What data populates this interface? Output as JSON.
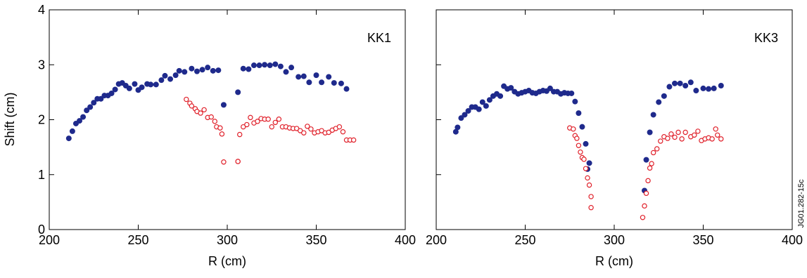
{
  "figure_id": "JG01.282-15c",
  "colors": {
    "filled": "#1f2a8c",
    "open": "#e0202a",
    "axis": "#000000"
  },
  "chart_data": [
    {
      "type": "scatter",
      "panel_label": "KK1",
      "xlabel": "R (cm)",
      "ylabel": "Shift (cm)",
      "xlim": [
        200,
        400
      ],
      "ylim": [
        0,
        4
      ],
      "xticks": [
        "200",
        "250",
        "300",
        "350",
        "400"
      ],
      "yticks": [
        "0",
        "1",
        "2",
        "3",
        "4"
      ],
      "grid": false,
      "series": [
        {
          "marker": "filled",
          "x": [
            211,
            213,
            215,
            217,
            219,
            221,
            223,
            225,
            227,
            229,
            231,
            233,
            235,
            237,
            239,
            241,
            243,
            245,
            248,
            250,
            252,
            255,
            257,
            260,
            263,
            265,
            268,
            271,
            273,
            276,
            280,
            283,
            286,
            289,
            292,
            295,
            298,
            306,
            309,
            312,
            315,
            318,
            321,
            324,
            327,
            330,
            333,
            336,
            340,
            343,
            346,
            350,
            353,
            357,
            360,
            364,
            367
          ],
          "y": [
            1.66,
            1.79,
            1.93,
            1.98,
            2.05,
            2.17,
            2.23,
            2.31,
            2.38,
            2.38,
            2.44,
            2.44,
            2.48,
            2.55,
            2.65,
            2.67,
            2.62,
            2.57,
            2.65,
            2.54,
            2.59,
            2.65,
            2.64,
            2.64,
            2.72,
            2.8,
            2.74,
            2.81,
            2.89,
            2.87,
            2.93,
            2.88,
            2.91,
            2.95,
            2.89,
            2.9,
            2.27,
            2.5,
            2.93,
            2.92,
            2.99,
            2.99,
            3.0,
            2.99,
            3.01,
            2.97,
            2.87,
            2.95,
            2.78,
            2.79,
            2.68,
            2.81,
            2.68,
            2.78,
            2.67,
            2.66,
            2.56
          ]
        },
        {
          "marker": "open",
          "x": [
            277,
            279,
            280,
            282,
            283,
            285,
            287,
            289,
            291,
            293,
            294,
            296,
            297,
            306,
            307,
            309,
            311,
            313,
            315,
            317,
            319,
            321,
            323,
            325,
            327,
            329,
            331,
            333,
            335,
            337,
            339,
            341,
            343,
            345,
            347,
            349,
            351,
            353,
            355,
            357,
            359,
            361,
            363,
            365,
            367,
            369,
            371
          ],
          "y": [
            2.37,
            2.3,
            2.25,
            2.2,
            2.15,
            2.12,
            2.18,
            2.04,
            2.05,
            1.97,
            1.87,
            1.85,
            1.74,
            1.24,
            1.73,
            1.87,
            1.91,
            2.04,
            1.94,
            1.97,
            2.02,
            2.01,
            2.01,
            1.87,
            1.95,
            2.01,
            1.87,
            1.87,
            1.85,
            1.84,
            1.84,
            1.8,
            1.76,
            1.88,
            1.83,
            1.76,
            1.78,
            1.8,
            1.76,
            1.77,
            1.81,
            1.84,
            1.87,
            1.78,
            1.63,
            1.63,
            1.63
          ]
        },
        {
          "marker": "open",
          "x": [
            298,
            306
          ],
          "y": [
            1.23,
            1.24
          ]
        }
      ]
    },
    {
      "type": "scatter",
      "panel_label": "KK3",
      "xlabel": "R (cm)",
      "ylabel": "",
      "xlim": [
        200,
        400
      ],
      "ylim": [
        0,
        4
      ],
      "xticks": [
        "200",
        "250",
        "300",
        "350",
        "400"
      ],
      "yticks": [],
      "grid": false,
      "series": [
        {
          "marker": "filled",
          "x": [
            211,
            212,
            214,
            216,
            218,
            220,
            222,
            224,
            226,
            228,
            230,
            232,
            234,
            236,
            238,
            240,
            242,
            244,
            246,
            248,
            250,
            252,
            254,
            256,
            258,
            260,
            262,
            264,
            266,
            268,
            270,
            272,
            274,
            276,
            278,
            280,
            282,
            284,
            285,
            286,
            317,
            318,
            320,
            322,
            325,
            328,
            331,
            334,
            337,
            340,
            343,
            346,
            350,
            353,
            356,
            360
          ],
          "y": [
            1.78,
            1.86,
            2.03,
            2.09,
            2.16,
            2.23,
            2.23,
            2.19,
            2.32,
            2.25,
            2.36,
            2.43,
            2.47,
            2.43,
            2.61,
            2.56,
            2.58,
            2.51,
            2.47,
            2.49,
            2.51,
            2.53,
            2.49,
            2.48,
            2.51,
            2.53,
            2.52,
            2.57,
            2.51,
            2.51,
            2.47,
            2.49,
            2.48,
            2.48,
            2.33,
            2.12,
            1.87,
            1.56,
            1.1,
            1.21,
            0.71,
            1.27,
            1.77,
            2.09,
            2.32,
            2.43,
            2.6,
            2.66,
            2.66,
            2.62,
            2.68,
            2.53,
            2.57,
            2.56,
            2.57,
            2.62
          ]
        },
        {
          "marker": "open",
          "x": [
            275,
            277,
            278,
            279,
            280,
            281,
            282,
            283,
            284,
            285,
            286,
            287,
            287,
            316,
            317,
            318,
            319,
            320,
            321,
            322,
            324,
            326,
            328,
            330,
            332,
            334,
            336,
            338,
            340,
            343,
            345,
            347,
            349,
            351,
            353,
            355,
            357,
            358,
            360
          ],
          "y": [
            1.85,
            1.83,
            1.71,
            1.66,
            1.53,
            1.41,
            1.31,
            1.28,
            1.11,
            0.94,
            0.81,
            0.6,
            0.4,
            0.22,
            0.43,
            0.66,
            0.89,
            1.12,
            1.2,
            1.4,
            1.47,
            1.61,
            1.69,
            1.66,
            1.74,
            1.68,
            1.77,
            1.65,
            1.77,
            1.69,
            1.72,
            1.79,
            1.62,
            1.65,
            1.67,
            1.65,
            1.83,
            1.72,
            1.65
          ]
        }
      ]
    }
  ]
}
